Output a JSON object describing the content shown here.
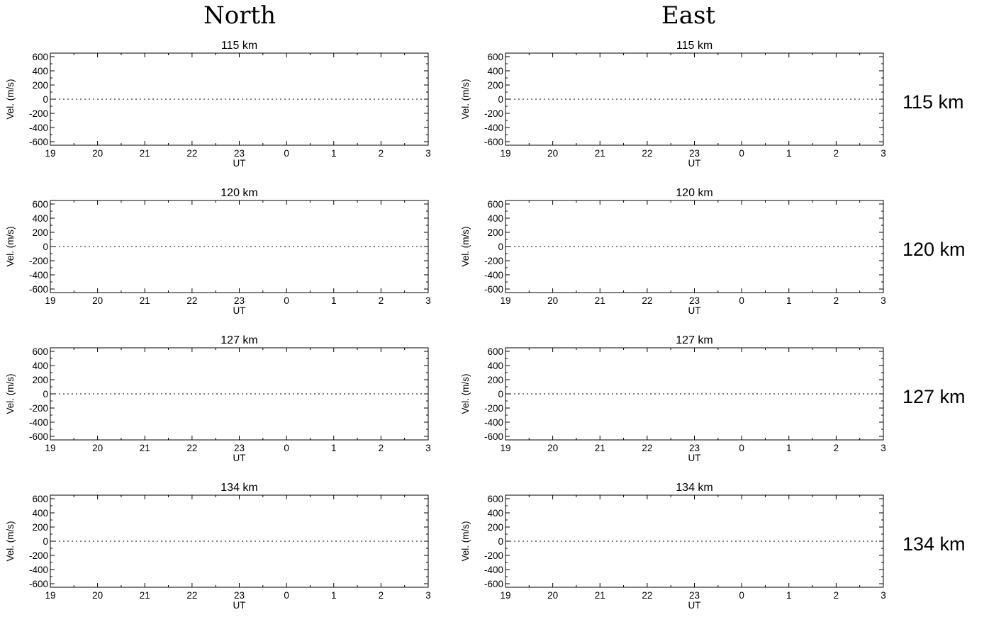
{
  "columns": [
    "North",
    "East"
  ],
  "row_labels": [
    "115 km",
    "120 km",
    "127 km",
    "134 km"
  ],
  "chart_data": [
    {
      "type": "line",
      "column": "North",
      "title": "115 km",
      "xlabel": "UT",
      "ylabel": "Vel. (m/s)",
      "xticks": [
        "19",
        "20",
        "21",
        "22",
        "23",
        "0",
        "1",
        "2",
        "3"
      ],
      "yticks": [
        "600",
        "400",
        "200",
        "0",
        "-200",
        "-400",
        "-600"
      ],
      "xlim": [
        19,
        27
      ],
      "ylim": [
        -650,
        650
      ],
      "reference_line": {
        "y": 0,
        "style": "dotted"
      },
      "series": []
    },
    {
      "type": "line",
      "column": "East",
      "title": "115 km",
      "xlabel": "UT",
      "ylabel": "Vel. (m/s)",
      "xticks": [
        "19",
        "20",
        "21",
        "22",
        "23",
        "0",
        "1",
        "2",
        "3"
      ],
      "yticks": [
        "600",
        "400",
        "200",
        "0",
        "-200",
        "-400",
        "-600"
      ],
      "xlim": [
        19,
        27
      ],
      "ylim": [
        -650,
        650
      ],
      "reference_line": {
        "y": 0,
        "style": "dotted"
      },
      "series": []
    },
    {
      "type": "line",
      "column": "North",
      "title": "120 km",
      "xlabel": "UT",
      "ylabel": "Vel. (m/s)",
      "xticks": [
        "19",
        "20",
        "21",
        "22",
        "23",
        "0",
        "1",
        "2",
        "3"
      ],
      "yticks": [
        "600",
        "400",
        "200",
        "0",
        "-200",
        "-400",
        "-600"
      ],
      "xlim": [
        19,
        27
      ],
      "ylim": [
        -650,
        650
      ],
      "reference_line": {
        "y": 0,
        "style": "dotted"
      },
      "series": []
    },
    {
      "type": "line",
      "column": "East",
      "title": "120 km",
      "xlabel": "UT",
      "ylabel": "Vel. (m/s)",
      "xticks": [
        "19",
        "20",
        "21",
        "22",
        "23",
        "0",
        "1",
        "2",
        "3"
      ],
      "yticks": [
        "600",
        "400",
        "200",
        "0",
        "-200",
        "-400",
        "-600"
      ],
      "xlim": [
        19,
        27
      ],
      "ylim": [
        -650,
        650
      ],
      "reference_line": {
        "y": 0,
        "style": "dotted"
      },
      "series": []
    },
    {
      "type": "line",
      "column": "North",
      "title": "127 km",
      "xlabel": "UT",
      "ylabel": "Vel. (m/s)",
      "xticks": [
        "19",
        "20",
        "21",
        "22",
        "23",
        "0",
        "1",
        "2",
        "3"
      ],
      "yticks": [
        "600",
        "400",
        "200",
        "0",
        "-200",
        "-400",
        "-600"
      ],
      "xlim": [
        19,
        27
      ],
      "ylim": [
        -650,
        650
      ],
      "reference_line": {
        "y": 0,
        "style": "dotted"
      },
      "series": []
    },
    {
      "type": "line",
      "column": "East",
      "title": "127 km",
      "xlabel": "UT",
      "ylabel": "Vel. (m/s)",
      "xticks": [
        "19",
        "20",
        "21",
        "22",
        "23",
        "0",
        "1",
        "2",
        "3"
      ],
      "yticks": [
        "600",
        "400",
        "200",
        "0",
        "-200",
        "-400",
        "-600"
      ],
      "xlim": [
        19,
        27
      ],
      "ylim": [
        -650,
        650
      ],
      "reference_line": {
        "y": 0,
        "style": "dotted"
      },
      "series": []
    },
    {
      "type": "line",
      "column": "North",
      "title": "134 km",
      "xlabel": "UT",
      "ylabel": "Vel. (m/s)",
      "xticks": [
        "19",
        "20",
        "21",
        "22",
        "23",
        "0",
        "1",
        "2",
        "3"
      ],
      "yticks": [
        "600",
        "400",
        "200",
        "0",
        "-200",
        "-400",
        "-600"
      ],
      "xlim": [
        19,
        27
      ],
      "ylim": [
        -650,
        650
      ],
      "reference_line": {
        "y": 0,
        "style": "dotted"
      },
      "series": []
    },
    {
      "type": "line",
      "column": "East",
      "title": "134 km",
      "xlabel": "UT",
      "ylabel": "Vel. (m/s)",
      "xticks": [
        "19",
        "20",
        "21",
        "22",
        "23",
        "0",
        "1",
        "2",
        "3"
      ],
      "yticks": [
        "600",
        "400",
        "200",
        "0",
        "-200",
        "-400",
        "-600"
      ],
      "xlim": [
        19,
        27
      ],
      "ylim": [
        -650,
        650
      ],
      "reference_line": {
        "y": 0,
        "style": "dotted"
      },
      "series": []
    }
  ]
}
